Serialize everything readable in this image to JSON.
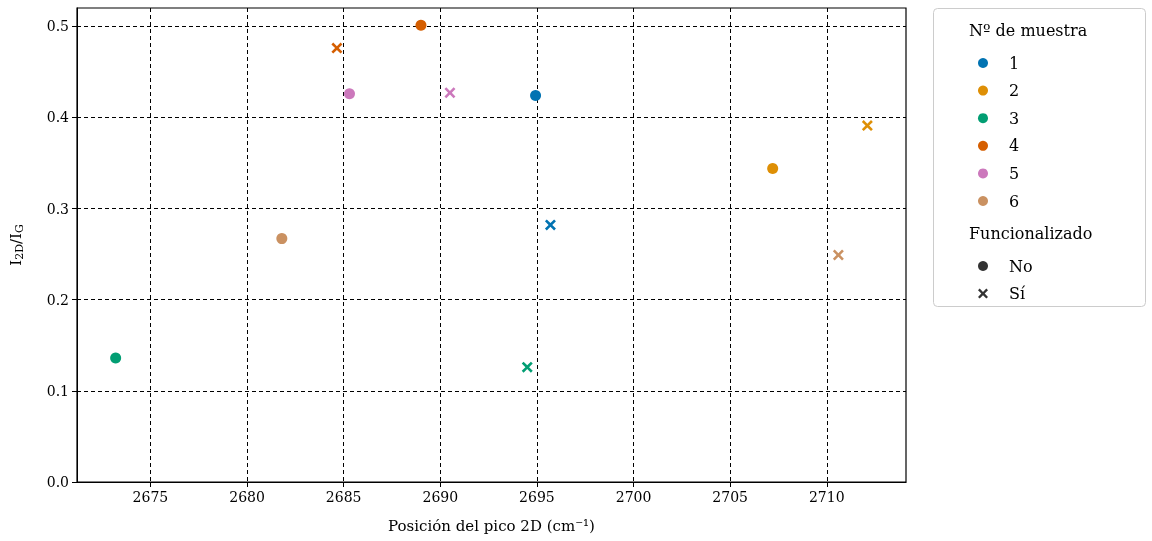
{
  "chart_data": {
    "type": "scatter",
    "xlabel": "Posición del pico 2D (cm⁻¹)",
    "ylabel": "I$_{2D}$/I$_{G}$",
    "legend_title": [
      "Nº de muestra",
      "Funcionalizado"
    ],
    "xlim": [
      2671.2,
      2714.1
    ],
    "xticks": [
      2675,
      2680,
      2685,
      2690,
      2695,
      2700,
      2705,
      2710
    ],
    "ylim": [
      0,
      0.52
    ],
    "yticks": [
      {
        "value": 0,
        "label": "0.0"
      },
      0.1,
      0.2,
      0.3,
      0.4,
      0.5
    ],
    "grid": true,
    "legend": "right",
    "series": [
      {
        "name": "1",
        "color": "#0173b2",
        "marker": "circle",
        "x": [
          2694.93
        ],
        "values": [
          0.424
        ]
      },
      {
        "name": "2",
        "color": "#de8f05",
        "marker": "circle",
        "x": [
          2707.2
        ],
        "values": [
          0.344
        ]
      },
      {
        "name": "3",
        "color": "#029e73",
        "marker": "circle",
        "x": [
          2673.2
        ],
        "values": [
          0.136
        ]
      },
      {
        "name": "4",
        "color": "#d55e00",
        "marker": "circle",
        "x": [
          2689.0
        ],
        "values": [
          0.501
        ]
      },
      {
        "name": "5",
        "color": "#cc78bc",
        "marker": "circle",
        "x": [
          2685.3
        ],
        "values": [
          0.426
        ]
      },
      {
        "name": "6",
        "color": "#ca9161",
        "marker": "circle",
        "x": [
          2681.8
        ],
        "values": [
          0.267
        ]
      },
      {
        "name": "No",
        "color": "#333333",
        "marker": "circle"
      },
      {
        "name": "Sí",
        "color": "#333333",
        "marker": "cross"
      },
      {
        "color": "#0173b2",
        "marker": "cross",
        "x": [
          2695.7
        ],
        "values": [
          0.282
        ]
      },
      {
        "color": "#de8f05",
        "marker": "cross",
        "x": [
          2712.1
        ],
        "values": [
          0.391
        ]
      },
      {
        "color": "#029e73",
        "marker": "cross",
        "x": [
          2694.5
        ],
        "values": [
          0.126
        ]
      },
      {
        "color": "#d55e00",
        "marker": "cross",
        "x": [
          2684.65
        ],
        "values": [
          0.476
        ]
      },
      {
        "color": "#cc78bc",
        "marker": "cross",
        "x": [
          2690.5
        ],
        "values": [
          0.427
        ]
      },
      {
        "color": "#ca9161",
        "marker": "cross",
        "x": [
          2710.6
        ],
        "values": [
          0.249
        ]
      }
    ]
  }
}
